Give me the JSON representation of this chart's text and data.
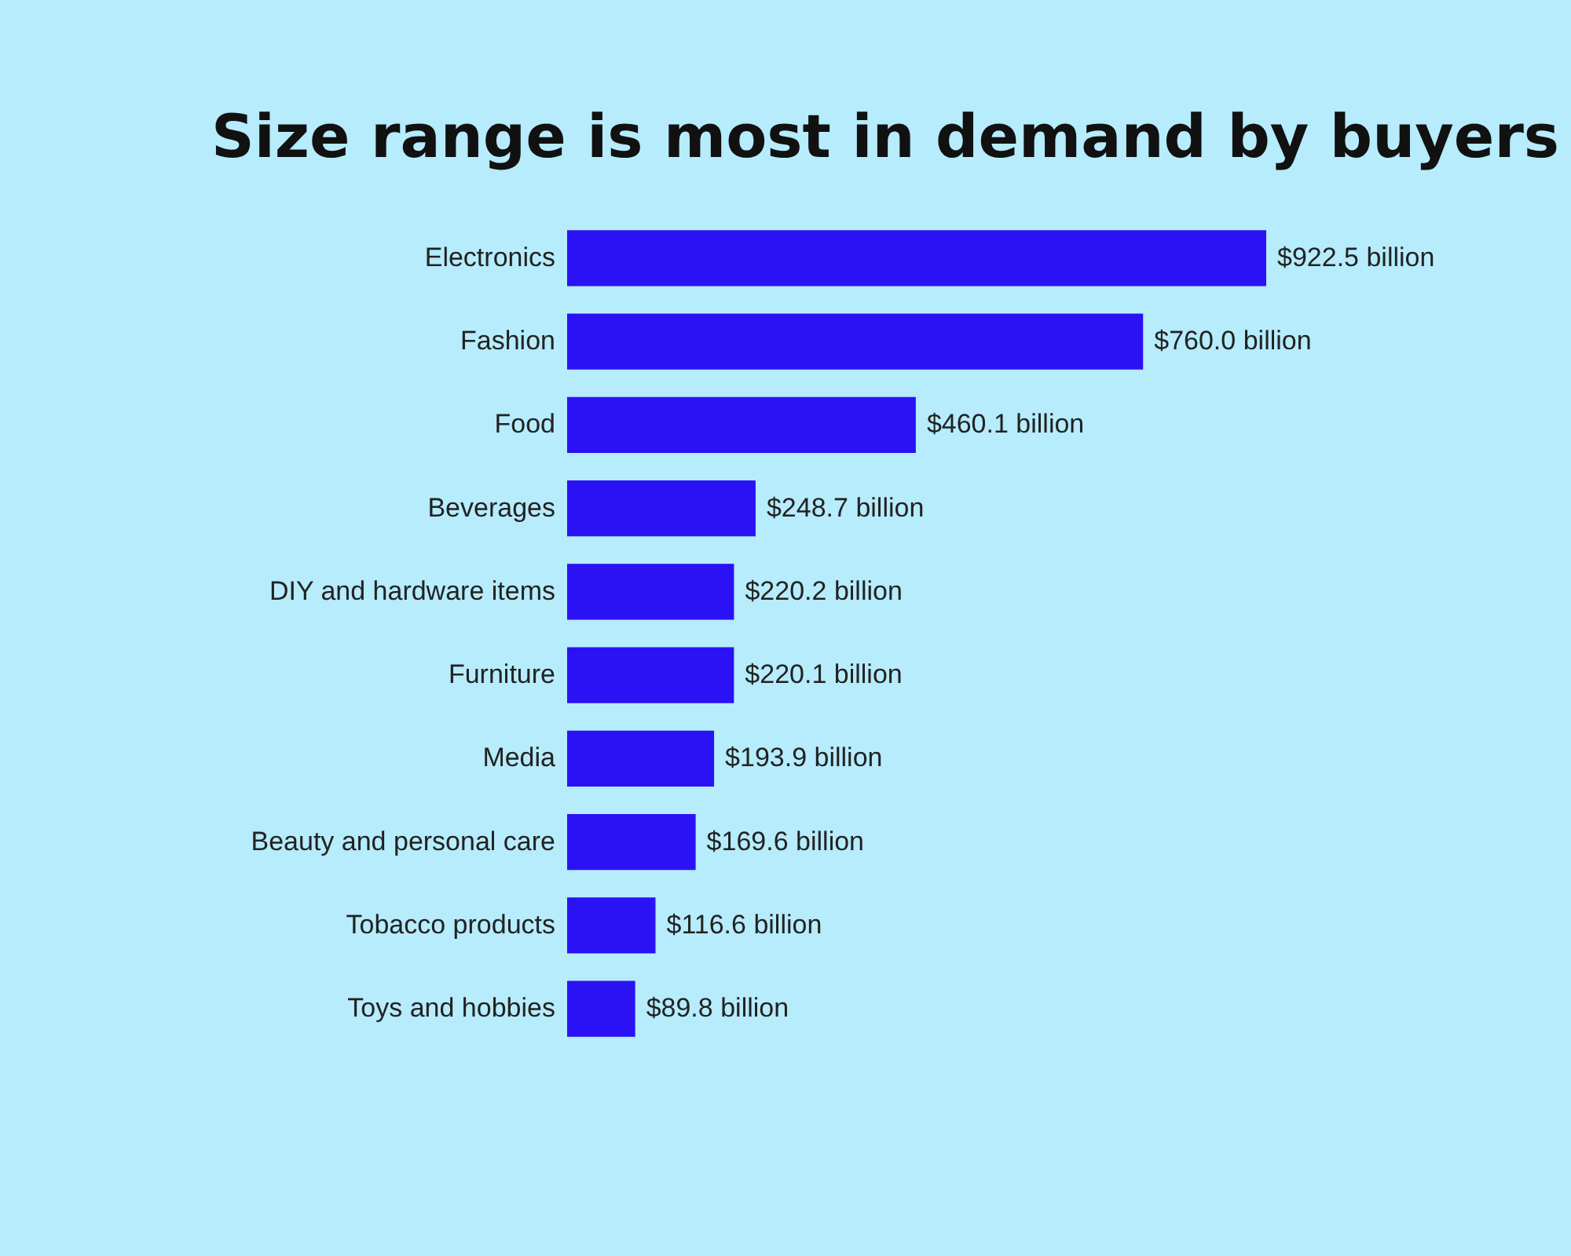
{
  "chart_data": {
    "type": "bar",
    "orientation": "horizontal",
    "title": "Size range is most in demand by buyers",
    "categories": [
      "Electronics",
      "Fashion",
      "Food",
      "Beverages",
      "DIY and hardware items",
      "Furniture",
      "Media",
      "Beauty and personal care",
      "Tobacco products",
      "Toys and hobbies"
    ],
    "values": [
      922.5,
      760.0,
      460.1,
      248.7,
      220.2,
      220.1,
      193.9,
      169.6,
      116.6,
      89.8
    ],
    "value_labels": [
      "$922.5 billion",
      "$760.0 billion",
      "$460.1 billion",
      "$248.7 billion",
      "$220.2 billion",
      "$220.1 billion",
      "$193.9 billion",
      "$169.6 billion",
      "$116.6 billion",
      "$89.8 billion"
    ],
    "color": "#2b12f5"
  }
}
